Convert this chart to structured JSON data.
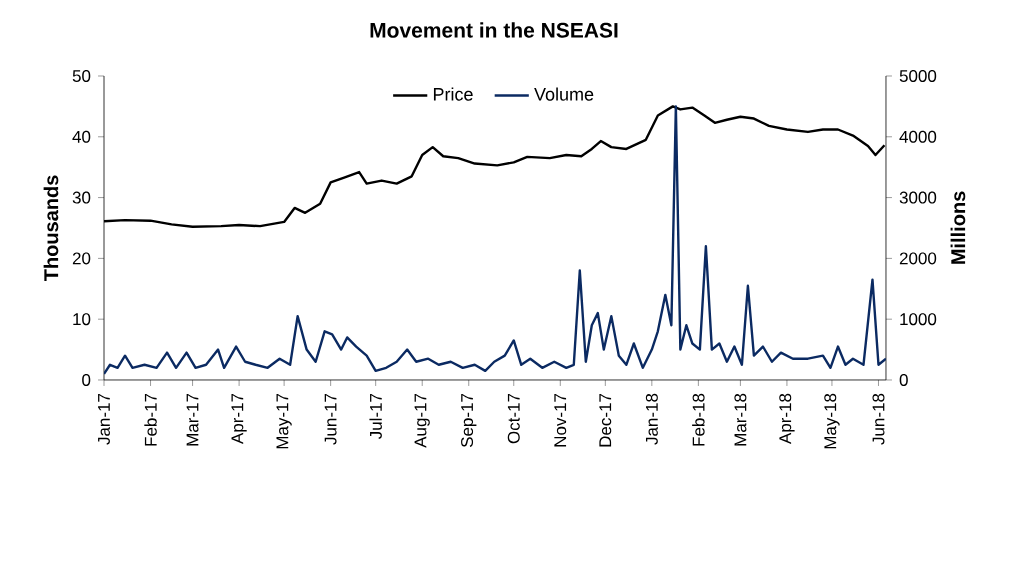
{
  "chart_data": {
    "type": "line",
    "title": "Movement in the NSEASI",
    "ylabel": "Thousands",
    "y2label": "Millions",
    "xlim": [
      "2017-01-01",
      "2018-06-06"
    ],
    "xticks": [
      {
        "value": "2017-01-01",
        "label": "Jan-17"
      },
      {
        "value": "2017-02-01",
        "label": "Feb-17"
      },
      {
        "value": "2017-03-01",
        "label": "Mar-17"
      },
      {
        "value": "2017-04-01",
        "label": "Apr-17"
      },
      {
        "value": "2017-05-01",
        "label": "May-17"
      },
      {
        "value": "2017-06-01",
        "label": "Jun-17"
      },
      {
        "value": "2017-07-01",
        "label": "Jul-17"
      },
      {
        "value": "2017-08-01",
        "label": "Aug-17"
      },
      {
        "value": "2017-09-01",
        "label": "Sep-17"
      },
      {
        "value": "2017-10-01",
        "label": "Oct-17"
      },
      {
        "value": "2017-11-01",
        "label": "Nov-17"
      },
      {
        "value": "2017-12-01",
        "label": "Dec-17"
      },
      {
        "value": "2018-01-01",
        "label": "Jan-18"
      },
      {
        "value": "2018-02-01",
        "label": "Feb-18"
      },
      {
        "value": "2018-03-01",
        "label": "Mar-18"
      },
      {
        "value": "2018-04-01",
        "label": "Apr-18"
      },
      {
        "value": "2018-05-01",
        "label": "May-18"
      },
      {
        "value": "2018-06-01",
        "label": "Jun-18"
      }
    ],
    "ylim": [
      0,
      50
    ],
    "yticks": [
      0,
      10,
      20,
      30,
      40,
      50
    ],
    "y2lim": [
      0,
      5000
    ],
    "y2ticks": [
      0,
      1000,
      2000,
      3000,
      4000,
      5000
    ],
    "legend": "top",
    "series": [
      {
        "name": "Price",
        "color": "#000000",
        "axis": "y",
        "x": [
          "2017-01-01",
          "2017-01-15",
          "2017-02-01",
          "2017-02-15",
          "2017-03-01",
          "2017-03-20",
          "2017-04-01",
          "2017-04-15",
          "2017-05-01",
          "2017-05-08",
          "2017-05-15",
          "2017-05-25",
          "2017-06-01",
          "2017-06-10",
          "2017-06-20",
          "2017-06-25",
          "2017-07-05",
          "2017-07-15",
          "2017-07-25",
          "2017-08-01",
          "2017-08-08",
          "2017-08-15",
          "2017-08-25",
          "2017-09-05",
          "2017-09-20",
          "2017-10-01",
          "2017-10-10",
          "2017-10-25",
          "2017-11-05",
          "2017-11-15",
          "2017-11-22",
          "2017-11-28",
          "2017-12-05",
          "2017-12-15",
          "2017-12-28",
          "2018-01-05",
          "2018-01-15",
          "2018-01-20",
          "2018-01-28",
          "2018-02-05",
          "2018-02-12",
          "2018-02-20",
          "2018-03-01",
          "2018-03-10",
          "2018-03-20",
          "2018-04-01",
          "2018-04-15",
          "2018-04-25",
          "2018-05-05",
          "2018-05-15",
          "2018-05-25",
          "2018-05-30",
          "2018-06-05"
        ],
        "values": [
          26.1,
          26.3,
          26.2,
          25.6,
          25.2,
          25.3,
          25.5,
          25.3,
          26.0,
          28.3,
          27.5,
          29.0,
          32.5,
          33.3,
          34.2,
          32.3,
          32.8,
          32.3,
          33.5,
          37.0,
          38.3,
          36.8,
          36.5,
          35.6,
          35.3,
          35.8,
          36.7,
          36.5,
          37.0,
          36.8,
          38.0,
          39.3,
          38.3,
          38.0,
          39.5,
          43.5,
          45.0,
          44.5,
          44.8,
          43.5,
          42.3,
          42.8,
          43.3,
          43.0,
          41.8,
          41.2,
          40.8,
          41.2,
          41.2,
          40.2,
          38.5,
          37.0,
          38.6
        ]
      },
      {
        "name": "Volume",
        "color": "#0b2a62",
        "axis": "y2",
        "x": [
          "2017-01-01",
          "2017-01-05",
          "2017-01-10",
          "2017-01-15",
          "2017-01-20",
          "2017-01-28",
          "2017-02-05",
          "2017-02-12",
          "2017-02-18",
          "2017-02-25",
          "2017-03-03",
          "2017-03-10",
          "2017-03-18",
          "2017-03-22",
          "2017-03-30",
          "2017-04-05",
          "2017-04-12",
          "2017-04-20",
          "2017-04-28",
          "2017-05-05",
          "2017-05-10",
          "2017-05-16",
          "2017-05-22",
          "2017-05-28",
          "2017-06-02",
          "2017-06-08",
          "2017-06-12",
          "2017-06-18",
          "2017-06-25",
          "2017-07-01",
          "2017-07-08",
          "2017-07-15",
          "2017-07-22",
          "2017-07-28",
          "2017-08-05",
          "2017-08-12",
          "2017-08-20",
          "2017-08-28",
          "2017-09-05",
          "2017-09-12",
          "2017-09-18",
          "2017-09-25",
          "2017-10-01",
          "2017-10-06",
          "2017-10-12",
          "2017-10-20",
          "2017-10-28",
          "2017-11-05",
          "2017-11-10",
          "2017-11-14",
          "2017-11-18",
          "2017-11-22",
          "2017-11-26",
          "2017-11-30",
          "2017-12-05",
          "2017-12-10",
          "2017-12-15",
          "2017-12-20",
          "2017-12-26",
          "2018-01-01",
          "2018-01-05",
          "2018-01-10",
          "2018-01-14",
          "2018-01-17",
          "2018-01-20",
          "2018-01-24",
          "2018-01-28",
          "2018-02-02",
          "2018-02-06",
          "2018-02-10",
          "2018-02-15",
          "2018-02-20",
          "2018-02-25",
          "2018-03-02",
          "2018-03-06",
          "2018-03-10",
          "2018-03-16",
          "2018-03-22",
          "2018-03-28",
          "2018-04-05",
          "2018-04-15",
          "2018-04-25",
          "2018-04-30",
          "2018-05-05",
          "2018-05-10",
          "2018-05-15",
          "2018-05-22",
          "2018-05-28",
          "2018-06-01",
          "2018-06-06"
        ],
        "values": [
          100,
          250,
          200,
          400,
          200,
          250,
          200,
          450,
          200,
          450,
          200,
          250,
          500,
          200,
          550,
          300,
          250,
          200,
          350,
          250,
          1050,
          500,
          300,
          800,
          750,
          500,
          700,
          550,
          400,
          150,
          200,
          300,
          500,
          300,
          350,
          250,
          300,
          200,
          250,
          150,
          300,
          400,
          650,
          250,
          350,
          200,
          300,
          200,
          250,
          1800,
          300,
          900,
          1100,
          500,
          1050,
          400,
          250,
          600,
          200,
          500,
          800,
          1400,
          900,
          4500,
          500,
          900,
          600,
          500,
          2200,
          500,
          600,
          300,
          550,
          250,
          1550,
          400,
          550,
          300,
          450,
          350,
          350,
          400,
          200,
          550,
          250,
          350,
          250,
          1650,
          250,
          350
        ]
      }
    ]
  }
}
